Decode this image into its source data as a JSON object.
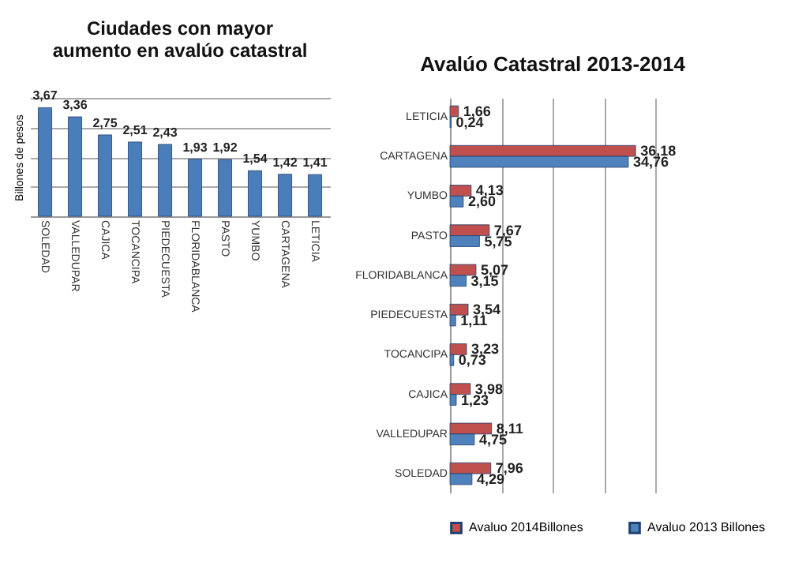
{
  "chart_data": [
    {
      "type": "bar",
      "title": "Ciudades con mayor aumento en avalúo catastral",
      "ylabel": "Billones de pesos",
      "categories": [
        "SOLEDAD",
        "VALLEDUPAR",
        "CAJICA",
        "TOCANCIPA",
        "PIEDECUESTA",
        "FLORIDABLANCA",
        "PASTO",
        "YUMBO",
        "CARTAGENA",
        "LETICIA"
      ],
      "series": [
        {
          "color": "#4a7ebb",
          "values": [
            3.67,
            3.36,
            2.75,
            2.51,
            2.43,
            1.93,
            1.92,
            1.54,
            1.42,
            1.41
          ],
          "value_labels": [
            "3,67",
            "3,36",
            "2,75",
            "2,51",
            "2,43",
            "1,93",
            "1,92",
            "1,54",
            "1,42",
            "1,41"
          ]
        }
      ],
      "grid": "y",
      "legend": false
    },
    {
      "type": "bar",
      "orientation": "horizontal",
      "title": "Avalúo Catastral 2013-2014",
      "categories": [
        "LETICIA",
        "CARTAGENA",
        "YUMBO",
        "PASTO",
        "FLORIDABLANCA",
        "PIEDECUESTA",
        "TOCANCIPA",
        "CAJICA",
        "VALLEDUPAR",
        "SOLEDAD"
      ],
      "series": [
        {
          "name": "Avaluo 2014Billones",
          "color": "#c0504d",
          "values": [
            1.66,
            36.18,
            4.13,
            7.67,
            5.07,
            3.54,
            3.23,
            3.98,
            8.11,
            7.96
          ],
          "value_labels": [
            "1,66",
            "36,18",
            "4,13",
            "7,67",
            "5,07",
            "3,54",
            "3,23",
            "3,98",
            "8,11",
            "7,96"
          ]
        },
        {
          "name": "Avaluo 2013 Billones",
          "color": "#4f81bd",
          "values": [
            0.24,
            34.76,
            2.6,
            5.75,
            3.15,
            1.11,
            0.73,
            1.23,
            4.75,
            4.29
          ],
          "value_labels": [
            "0,24",
            "34,76",
            "2,60",
            "5,75",
            "3,15",
            "1,11",
            "0,73",
            "1,23",
            "4,75",
            "4,29"
          ]
        }
      ],
      "grid": "x",
      "legend": "bottom"
    }
  ]
}
